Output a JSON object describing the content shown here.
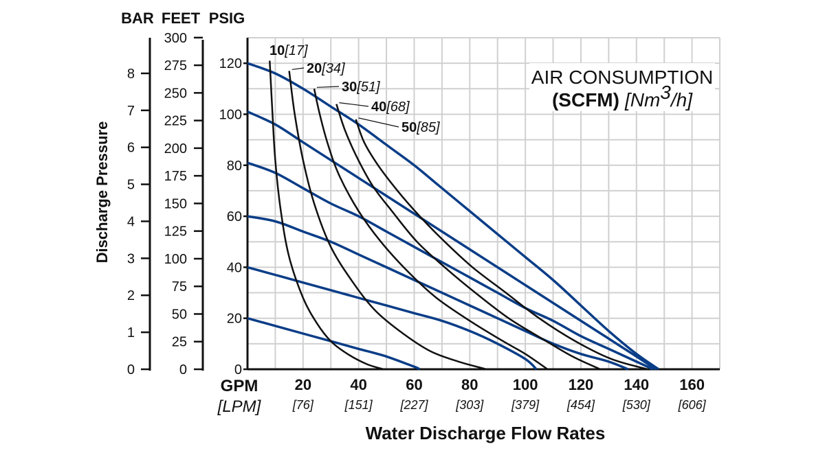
{
  "chart_data": {
    "type": "line",
    "title": "Water Discharge Flow Rates",
    "ylabel": "Discharge Pressure",
    "xunit": "GPM",
    "xunit_alt": "[LPM]",
    "xlim": [
      0,
      170
    ],
    "ylim": [
      0,
      130
    ],
    "grid": true,
    "x_ticks": [
      {
        "gpm": "20",
        "lpm": "[76]"
      },
      {
        "gpm": "40",
        "lpm": "[151]"
      },
      {
        "gpm": "60",
        "lpm": "[227]"
      },
      {
        "gpm": "80",
        "lpm": "[303]"
      },
      {
        "gpm": "100",
        "lpm": "[379]"
      },
      {
        "gpm": "120",
        "lpm": "[454]"
      },
      {
        "gpm": "140",
        "lpm": "[530]"
      },
      {
        "gpm": "160",
        "lpm": "[606]"
      }
    ],
    "x_tick_values": [
      20,
      40,
      60,
      80,
      100,
      120,
      140,
      160
    ],
    "scales": {
      "bar": {
        "header": "BAR",
        "labels": [
          "0",
          "1",
          "2",
          "3",
          "4",
          "5",
          "6",
          "7",
          "8"
        ]
      },
      "feet": {
        "header": "FEET",
        "labels": [
          "0",
          "25",
          "50",
          "75",
          "100",
          "125",
          "150",
          "175",
          "200",
          "225",
          "250",
          "275",
          "300"
        ]
      },
      "psig": {
        "header": "PSIG",
        "labels": [
          "0",
          "20",
          "40",
          "60",
          "80",
          "100",
          "120"
        ]
      }
    },
    "legend": {
      "line1": "AIR CONSUMPTION",
      "line2_bold": "(SCFM)",
      "line2_italic_a": "[Nm",
      "line2_sup": "3",
      "line2_italic_b": "/h]"
    },
    "pressure_series": [
      {
        "name": "120 psig",
        "points": [
          [
            0,
            120
          ],
          [
            10,
            116
          ],
          [
            20,
            110
          ],
          [
            30,
            103
          ],
          [
            40,
            96
          ],
          [
            50,
            88
          ],
          [
            60,
            80
          ],
          [
            70,
            71
          ],
          [
            80,
            62
          ],
          [
            90,
            53
          ],
          [
            100,
            44
          ],
          [
            110,
            35
          ],
          [
            120,
            25
          ],
          [
            130,
            15
          ],
          [
            140,
            6
          ],
          [
            148,
            0
          ]
        ]
      },
      {
        "name": "100 psig",
        "points": [
          [
            0,
            101
          ],
          [
            10,
            96
          ],
          [
            20,
            89
          ],
          [
            30,
            82
          ],
          [
            40,
            75
          ],
          [
            50,
            68
          ],
          [
            60,
            61
          ],
          [
            70,
            54
          ],
          [
            80,
            47
          ],
          [
            90,
            40
          ],
          [
            100,
            33
          ],
          [
            110,
            26
          ],
          [
            120,
            19
          ],
          [
            130,
            12
          ],
          [
            140,
            5
          ],
          [
            147,
            0
          ]
        ]
      },
      {
        "name": "80 psig",
        "points": [
          [
            0,
            81
          ],
          [
            10,
            77
          ],
          [
            20,
            71
          ],
          [
            30,
            65
          ],
          [
            40,
            60
          ],
          [
            50,
            54
          ],
          [
            60,
            48
          ],
          [
            70,
            42
          ],
          [
            80,
            36
          ],
          [
            90,
            30
          ],
          [
            100,
            24
          ],
          [
            110,
            19
          ],
          [
            120,
            13
          ],
          [
            130,
            8
          ],
          [
            140,
            3
          ],
          [
            146,
            0
          ]
        ]
      },
      {
        "name": "60 psig",
        "points": [
          [
            0,
            60
          ],
          [
            10,
            58
          ],
          [
            20,
            54
          ],
          [
            30,
            50
          ],
          [
            40,
            45
          ],
          [
            50,
            40
          ],
          [
            60,
            35
          ],
          [
            70,
            30
          ],
          [
            80,
            25
          ],
          [
            90,
            20
          ],
          [
            100,
            15
          ],
          [
            110,
            10
          ],
          [
            120,
            6
          ],
          [
            130,
            3
          ],
          [
            137,
            0
          ]
        ]
      },
      {
        "name": "40 psig",
        "points": [
          [
            0,
            40
          ],
          [
            10,
            37
          ],
          [
            20,
            34
          ],
          [
            30,
            31
          ],
          [
            40,
            28
          ],
          [
            50,
            25
          ],
          [
            60,
            22
          ],
          [
            70,
            19
          ],
          [
            80,
            15
          ],
          [
            90,
            10
          ],
          [
            100,
            4
          ],
          [
            104,
            0
          ]
        ]
      },
      {
        "name": "20 psig",
        "points": [
          [
            0,
            20
          ],
          [
            10,
            17
          ],
          [
            20,
            14
          ],
          [
            30,
            11
          ],
          [
            40,
            8
          ],
          [
            50,
            5
          ],
          [
            60,
            1
          ],
          [
            62,
            0
          ]
        ]
      }
    ],
    "air_series": [
      {
        "name": "10",
        "alt": "[17]",
        "points": [
          [
            8,
            121
          ],
          [
            9,
            100
          ],
          [
            10,
            82
          ],
          [
            12,
            62
          ],
          [
            15,
            44
          ],
          [
            20,
            28
          ],
          [
            25,
            18
          ],
          [
            30,
            11
          ],
          [
            36,
            6
          ],
          [
            43,
            2
          ],
          [
            49,
            0
          ]
        ]
      },
      {
        "name": "20",
        "alt": "[34]",
        "points": [
          [
            15,
            117
          ],
          [
            17,
            100
          ],
          [
            20,
            82
          ],
          [
            24,
            65
          ],
          [
            30,
            48
          ],
          [
            38,
            34
          ],
          [
            46,
            23
          ],
          [
            56,
            14
          ],
          [
            66,
            7
          ],
          [
            76,
            3
          ],
          [
            86,
            0
          ]
        ]
      },
      {
        "name": "30",
        "alt": "[51]",
        "points": [
          [
            24,
            110
          ],
          [
            26,
            100
          ],
          [
            29,
            88
          ],
          [
            33,
            76
          ],
          [
            40,
            62
          ],
          [
            48,
            50
          ],
          [
            58,
            38
          ],
          [
            68,
            28
          ],
          [
            80,
            19
          ],
          [
            92,
            11
          ],
          [
            100,
            6
          ],
          [
            108,
            0
          ]
        ]
      },
      {
        "name": "40",
        "alt": "[68]",
        "points": [
          [
            32,
            104
          ],
          [
            35,
            94
          ],
          [
            39,
            84
          ],
          [
            45,
            72
          ],
          [
            52,
            62
          ],
          [
            61,
            50
          ],
          [
            71,
            40
          ],
          [
            82,
            30
          ],
          [
            94,
            20
          ],
          [
            106,
            12
          ],
          [
            117,
            5
          ],
          [
            127,
            0
          ]
        ]
      },
      {
        "name": "50",
        "alt": "[85]",
        "points": [
          [
            39,
            98
          ],
          [
            42,
            89
          ],
          [
            47,
            80
          ],
          [
            54,
            70
          ],
          [
            62,
            60
          ],
          [
            71,
            50
          ],
          [
            81,
            40
          ],
          [
            93,
            30
          ],
          [
            105,
            20
          ],
          [
            118,
            11
          ],
          [
            131,
            4
          ],
          [
            144,
            0
          ]
        ]
      }
    ],
    "colors": {
      "pressure_curve": "#0a3d87",
      "air_curve": "#111111",
      "grid": "#d0d0d0",
      "axis": "#111111"
    }
  }
}
